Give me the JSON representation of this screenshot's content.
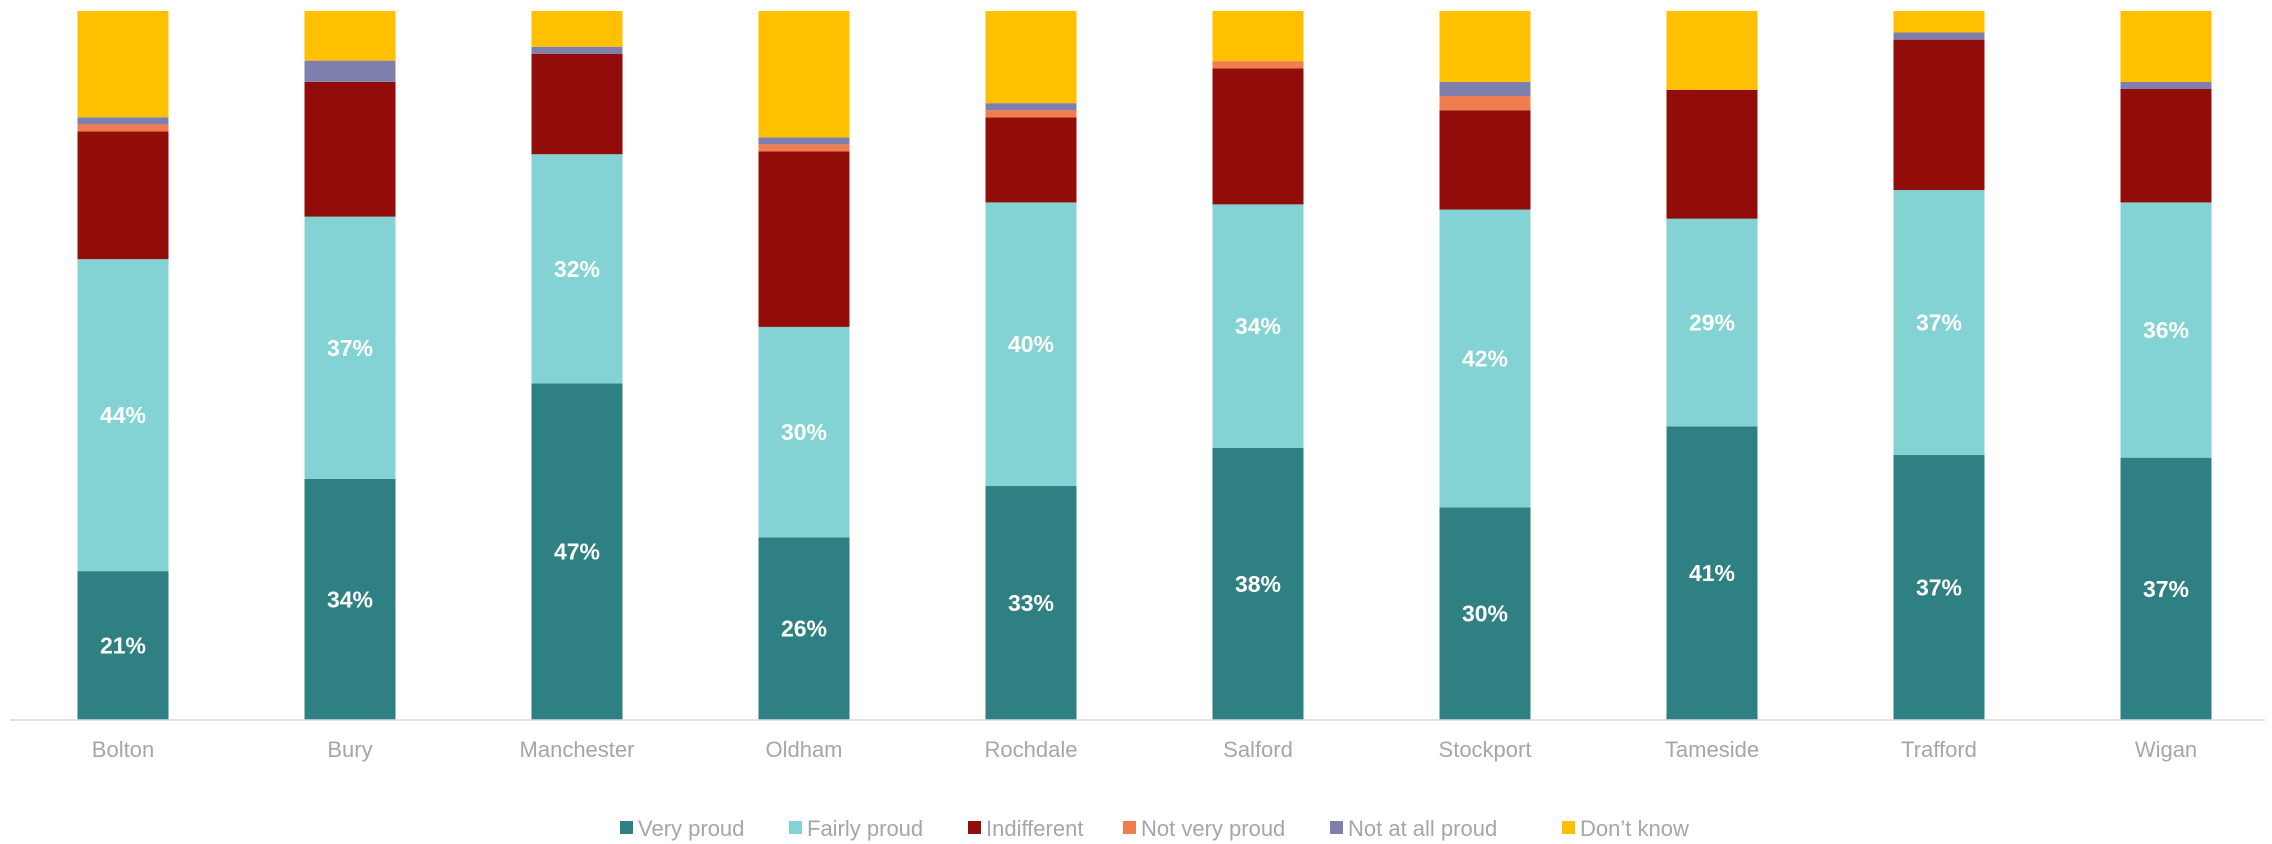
{
  "chart_data": {
    "type": "bar",
    "stacked": true,
    "normalized": true,
    "title": "",
    "xlabel": "",
    "ylabel": "",
    "ylim": [
      0,
      100
    ],
    "grid": false,
    "legend_position": "bottom",
    "categories": [
      "Bolton",
      "Bury",
      "Manchester",
      "Oldham",
      "Rochdale",
      "Salford",
      "Stockport",
      "Tameside",
      "Trafford",
      "Wigan"
    ],
    "series": [
      {
        "name": "Very proud",
        "color": "#2e8082",
        "values": [
          21,
          34,
          47,
          26,
          33,
          38,
          30,
          41,
          37,
          37
        ]
      },
      {
        "name": "Fairly proud",
        "color": "#84d3d4",
        "values": [
          44,
          37,
          32,
          30,
          40,
          34,
          42,
          29,
          37,
          36
        ]
      },
      {
        "name": "Indifferent",
        "color": "#920c09",
        "values": [
          18,
          19,
          14,
          25,
          12,
          19,
          14,
          18,
          21,
          16
        ]
      },
      {
        "name": "Not very proud",
        "color": "#f07d4e",
        "values": [
          1,
          0,
          0,
          1,
          1,
          1,
          2,
          0,
          0,
          0
        ]
      },
      {
        "name": "Not at all proud",
        "color": "#7f7fae",
        "values": [
          1,
          3,
          1,
          1,
          1,
          0,
          2,
          0,
          1,
          1
        ]
      },
      {
        "name": "Don’t know",
        "color": "#ffc000",
        "values": [
          15,
          7,
          5,
          18,
          13,
          7,
          10,
          11,
          3,
          10
        ]
      }
    ],
    "data_labels": {
      "Very proud": [
        "21%",
        "34%",
        "47%",
        "26%",
        "33%",
        "38%",
        "30%",
        "41%",
        "37%",
        "37%"
      ],
      "Fairly proud": [
        "44%",
        "37%",
        "32%",
        "30%",
        "40%",
        "34%",
        "42%",
        "29%",
        "37%",
        "36%"
      ]
    }
  }
}
